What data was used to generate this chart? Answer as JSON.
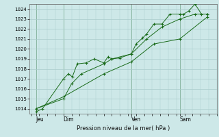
{
  "background_color": "#cde8e8",
  "grid_color": "#aacccc",
  "line_color": "#1a6b1a",
  "ylabel": "Pression niveau de la mer( hPa )",
  "ylim": [
    1013.5,
    1024.5
  ],
  "yticks": [
    1014,
    1015,
    1016,
    1017,
    1018,
    1019,
    1020,
    1021,
    1022,
    1023,
    1024
  ],
  "xlim": [
    -0.1,
    11.5
  ],
  "day_labels": [
    "Jeu",
    "Dim",
    "Ven",
    "Sam"
  ],
  "day_positions": [
    0.3,
    2.0,
    6.2,
    9.2
  ],
  "vline_positions": [
    0.3,
    2.0,
    6.2,
    9.2
  ],
  "series": [
    {
      "x": [
        0.3,
        0.7,
        2.0,
        2.3,
        2.55,
        2.85,
        3.4,
        3.9,
        4.5,
        4.75,
        5.0,
        5.5,
        6.2,
        6.5,
        6.9,
        7.15,
        7.6,
        8.1,
        8.6,
        9.2,
        9.45,
        9.75,
        10.15,
        10.55,
        10.9
      ],
      "y": [
        1013.7,
        1014.0,
        1017.0,
        1017.5,
        1017.2,
        1018.5,
        1018.6,
        1019.0,
        1018.6,
        1019.2,
        1019.0,
        1019.1,
        1019.5,
        1020.5,
        1021.1,
        1021.5,
        1022.5,
        1022.5,
        1023.5,
        1023.5,
        1023.5,
        1023.8,
        1024.5,
        1023.5,
        1023.5
      ]
    },
    {
      "x": [
        0.3,
        2.0,
        2.5,
        3.1,
        4.5,
        5.0,
        6.2,
        7.15,
        8.1,
        9.2,
        10.15,
        10.9
      ],
      "y": [
        1014.0,
        1015.0,
        1016.5,
        1017.5,
        1018.5,
        1019.0,
        1019.5,
        1021.0,
        1022.2,
        1023.0,
        1023.5,
        1023.5
      ]
    },
    {
      "x": [
        0.3,
        2.0,
        4.5,
        6.2,
        7.6,
        9.2,
        10.9
      ],
      "y": [
        1014.0,
        1015.2,
        1017.5,
        1018.7,
        1020.5,
        1021.0,
        1023.2
      ]
    }
  ]
}
